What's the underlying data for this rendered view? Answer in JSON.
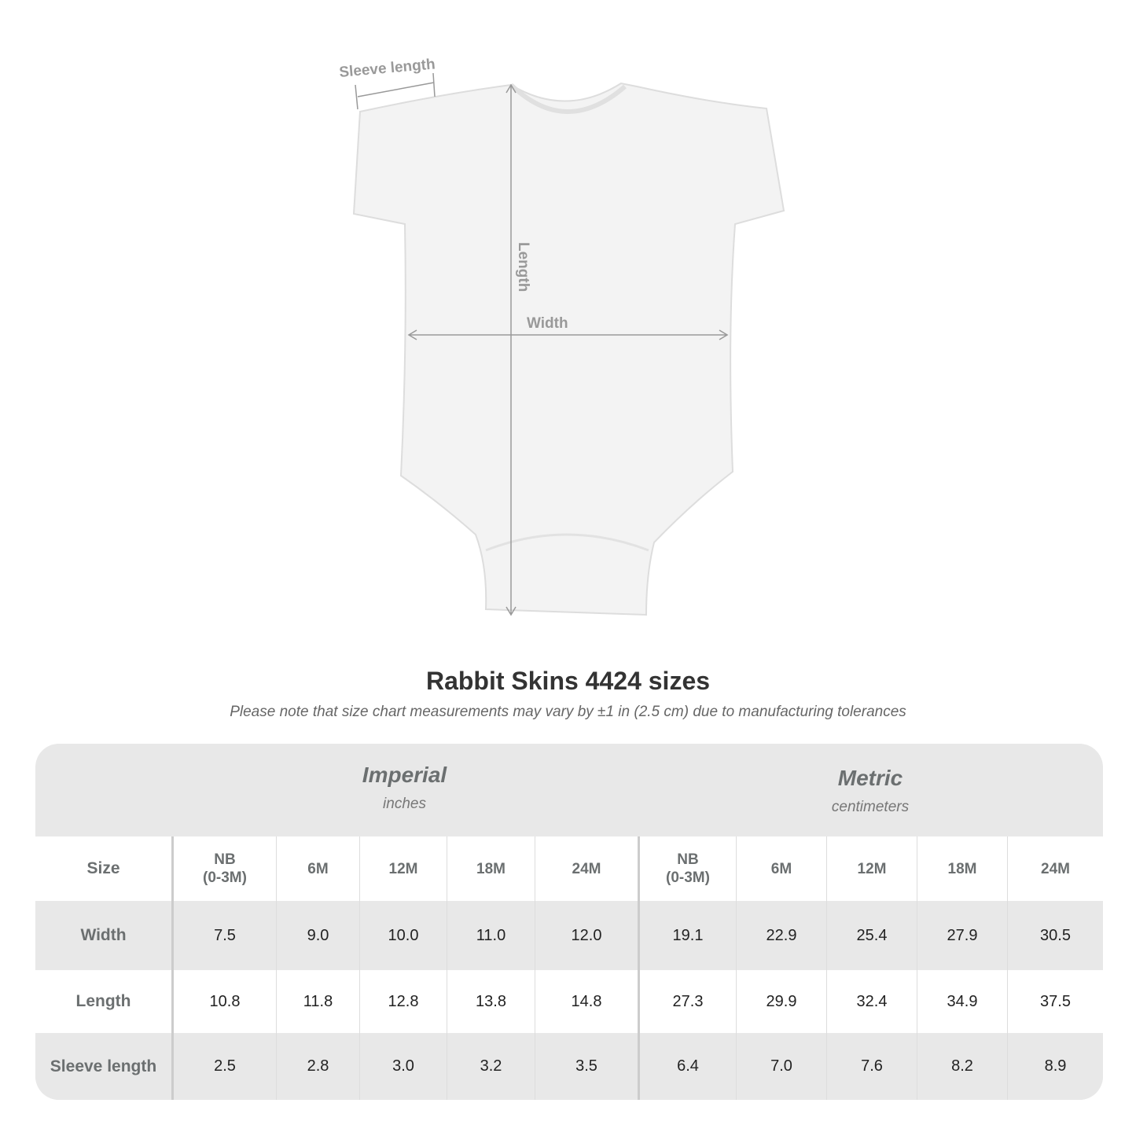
{
  "diagram": {
    "labels": {
      "sleeve": "Sleeve length",
      "length": "Length",
      "width": "Width"
    },
    "line_color": "#999999"
  },
  "title": "Rabbit Skins 4424 sizes",
  "note": "Please note that size chart measurements may vary by ±1 in (2.5 cm) due to manufacturing tolerances",
  "table": {
    "imperial": {
      "label": "Imperial",
      "unit": "inches"
    },
    "metric": {
      "label": "Metric",
      "unit": "centimeters"
    },
    "size_label": "Size",
    "sizes": [
      "NB\n(0-3M)",
      "6M",
      "12M",
      "18M",
      "24M",
      "NB\n(0-3M)",
      "6M",
      "12M",
      "18M",
      "24M"
    ],
    "rows": [
      {
        "label": "Width",
        "values": [
          "7.5",
          "9.0",
          "10.0",
          "11.0",
          "12.0",
          "19.1",
          "22.9",
          "25.4",
          "27.9",
          "30.5"
        ]
      },
      {
        "label": "Length",
        "values": [
          "10.8",
          "11.8",
          "12.8",
          "13.8",
          "14.8",
          "27.3",
          "29.9",
          "32.4",
          "34.9",
          "37.5"
        ]
      },
      {
        "label": "Sleeve length",
        "values": [
          "2.5",
          "2.8",
          "3.0",
          "3.2",
          "3.5",
          "6.4",
          "7.0",
          "7.6",
          "8.2",
          "8.9"
        ]
      }
    ],
    "colors": {
      "band": "#e8e8e8",
      "header_text": "#6b6f70"
    }
  }
}
